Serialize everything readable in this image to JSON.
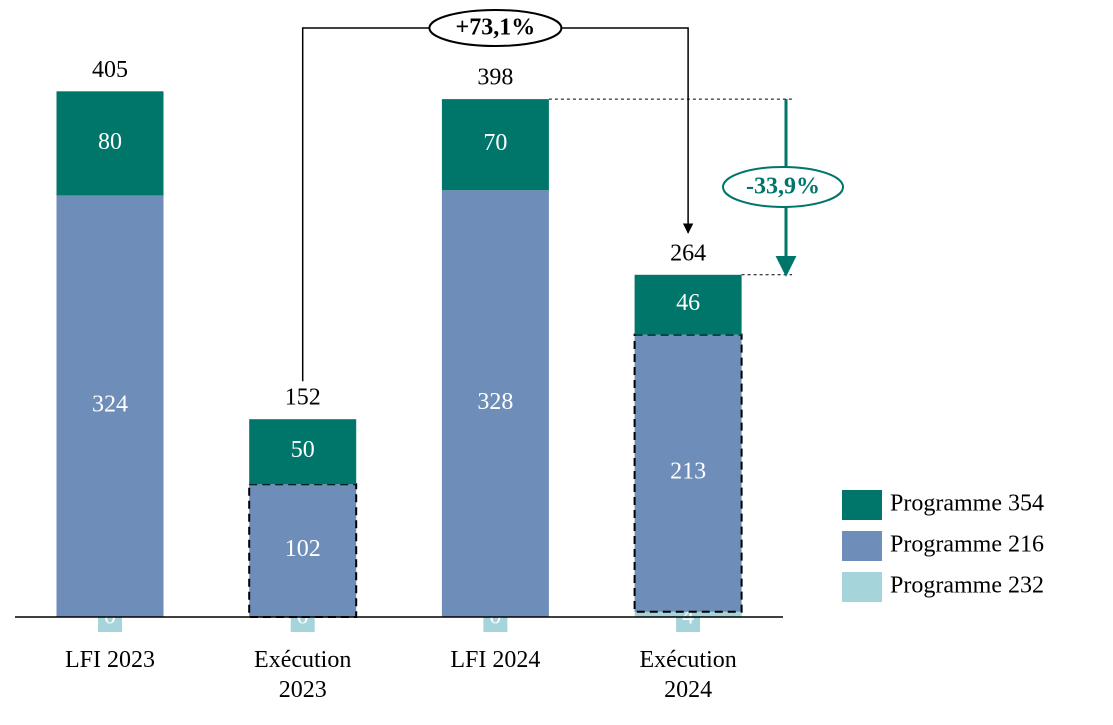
{
  "chart_data": {
    "type": "bar",
    "stacked": true,
    "categories": [
      "LFI 2023",
      "Exécution 2023",
      "LFI 2024",
      "Exécution 2024"
    ],
    "series": [
      {
        "name": "Programme 354",
        "color": "#00756a",
        "values": [
          80,
          50,
          70,
          46
        ]
      },
      {
        "name": "Programme 216",
        "color": "#6e8db9",
        "values": [
          324,
          102,
          328,
          213
        ],
        "outline_dashed": [
          false,
          true,
          false,
          true
        ]
      },
      {
        "name": "Programme 232",
        "color": "#a6d4db",
        "values": [
          0,
          0,
          0,
          4
        ]
      }
    ],
    "totals": [
      405,
      152,
      398,
      264
    ],
    "annotations": [
      "+73,1%",
      "-33,9%"
    ],
    "ylim": [
      0,
      420
    ],
    "legend": "right"
  }
}
